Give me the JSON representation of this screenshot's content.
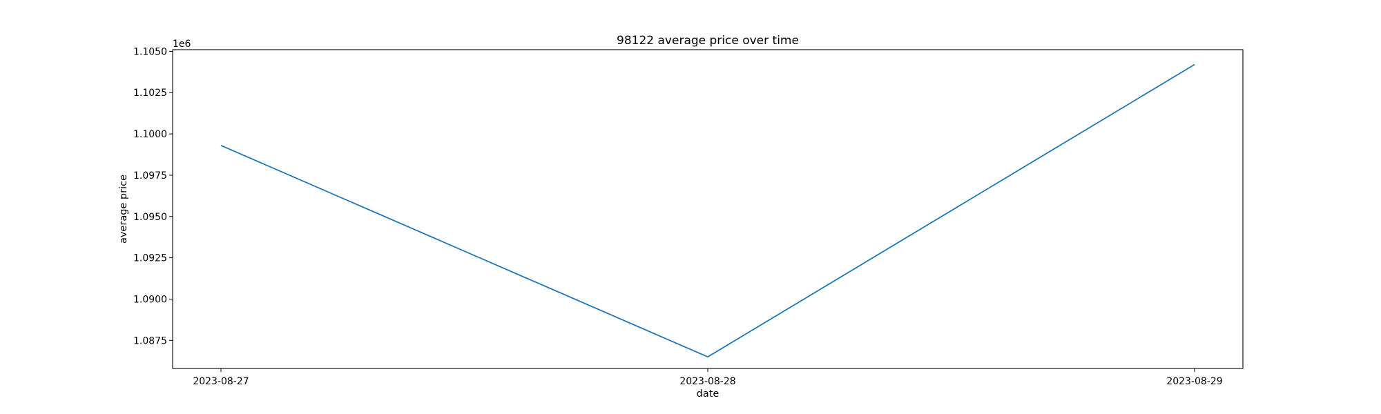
{
  "chart_data": {
    "type": "line",
    "title": "98122 average price over time",
    "xlabel": "date",
    "ylabel": "average price",
    "y_offset_label": "1e6",
    "x": [
      "2023-08-27",
      "2023-08-28",
      "2023-08-29"
    ],
    "series": [
      {
        "values": [
          1099300,
          1086500,
          1104200
        ]
      }
    ],
    "ylim": [
      1085800,
      1105100
    ],
    "y_ticks": [
      1.0875,
      1.09,
      1.0925,
      1.095,
      1.0975,
      1.1,
      1.1025,
      1.105
    ],
    "y_tick_labels": [
      "1.0875",
      "1.0900",
      "1.0925",
      "1.0950",
      "1.0975",
      "1.1000",
      "1.1025",
      "1.1050"
    ],
    "grid": false,
    "line_color": "#1f77b4"
  }
}
